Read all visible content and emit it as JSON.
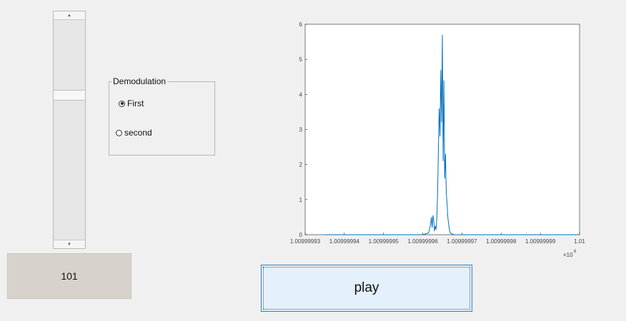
{
  "slider": {
    "value_text": "101"
  },
  "demodulation": {
    "title": "Demodulation",
    "options": [
      {
        "label": "First",
        "selected": true
      },
      {
        "label": "second",
        "selected": false
      }
    ]
  },
  "play_button": {
    "label": "play"
  },
  "chart_data": {
    "type": "line",
    "title": "",
    "xlabel": "",
    "ylabel": "",
    "x_multiplier": "×10",
    "x_multiplier_exponent": "6",
    "xlim": [
      1.00999993,
      1.01
    ],
    "ylim": [
      0,
      6
    ],
    "x_tick_labels": [
      "1.00999993",
      "1.00999994",
      "1.00999995",
      "1.00999996",
      "1.00999997",
      "1.00999998",
      "1.00999999",
      "1.01"
    ],
    "y_tick_labels": [
      "0",
      "1",
      "2",
      "3",
      "4",
      "5",
      "6"
    ],
    "x_ticks": [
      1.00999993,
      1.00999994,
      1.00999995,
      1.00999996,
      1.00999997,
      1.00999998,
      1.00999999,
      1.01
    ],
    "y_ticks": [
      0,
      1,
      2,
      3,
      4,
      5,
      6
    ],
    "series": [
      {
        "color": "#0072bd",
        "x": [
          1.009999935,
          1.00999996,
          1.0099999615,
          1.009999962,
          1.0099999622,
          1.0099999624,
          1.0099999626,
          1.0099999628,
          1.009999963,
          1.0099999632,
          1.0099999634,
          1.0099999636,
          1.0099999638,
          1.009999964,
          1.0099999642,
          1.0099999644,
          1.0099999646,
          1.0099999648,
          1.009999965,
          1.0099999652,
          1.0099999654,
          1.0099999656,
          1.0099999658,
          1.009999966,
          1.0099999662,
          1.0099999664,
          1.0099999666,
          1.0099999668,
          1.009999967,
          1.0099999675,
          1.009999968,
          1.01
        ],
        "y": [
          0,
          0,
          0.05,
          0.3,
          0.5,
          0.2,
          0.55,
          0.4,
          0.1,
          0.25,
          0.15,
          0.5,
          1.2,
          2.5,
          3.6,
          2.8,
          4.7,
          3.2,
          5.7,
          2.1,
          4.4,
          1.6,
          2.3,
          1.2,
          0.9,
          0.5,
          0.3,
          0.15,
          0.05,
          0.02,
          0,
          0
        ]
      }
    ],
    "grid": false
  }
}
